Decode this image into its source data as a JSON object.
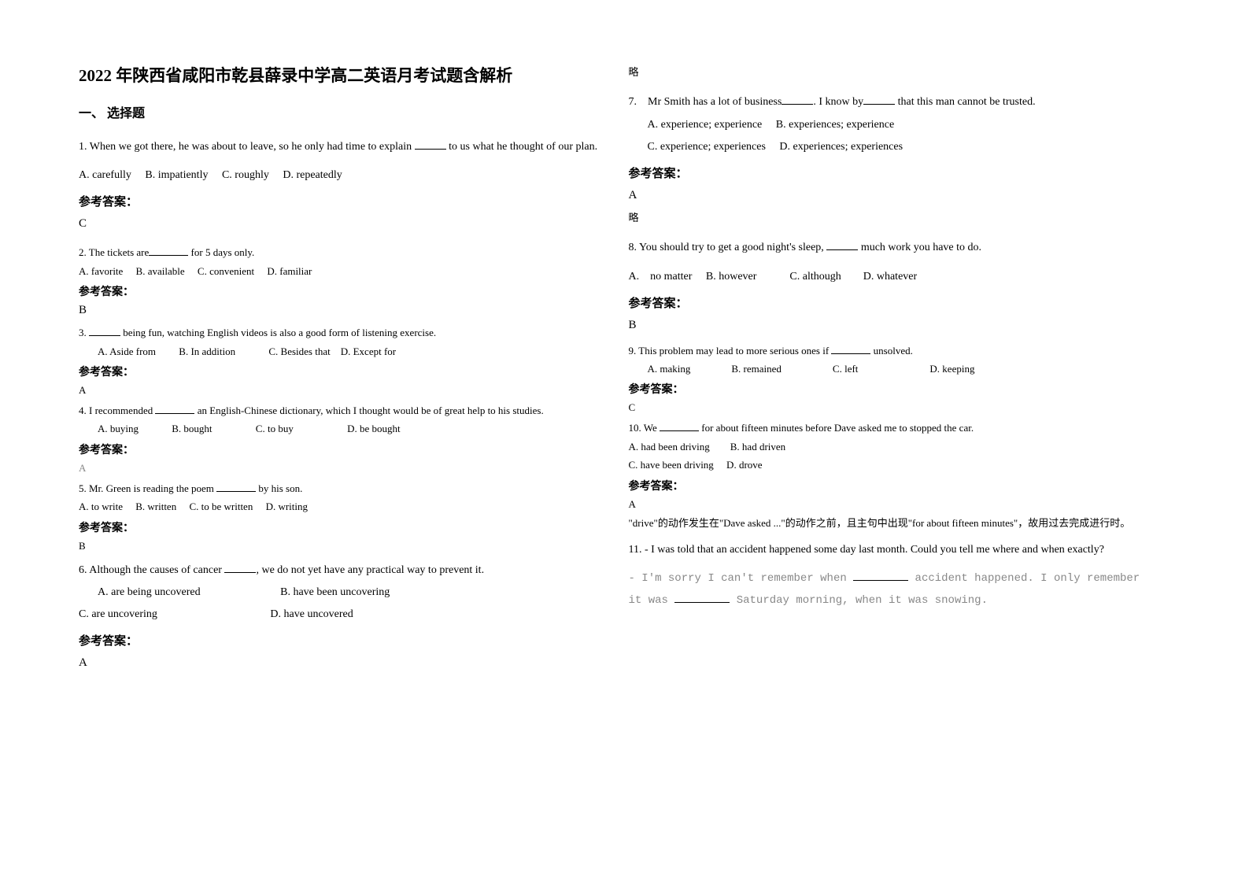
{
  "title": "2022 年陕西省咸阳市乾县薛录中学高二英语月考试题含解析",
  "section1": "一、 选择题",
  "answer_label": "参考答案：",
  "lue": "略",
  "q1": {
    "text_a": "1. When we got there, he was about to leave, so he only had time to explain ",
    "text_b": " to us what he thought of our plan.",
    "opts": "A. carefully  B. impatiently  C. roughly  D. repeatedly",
    "ans": "C"
  },
  "q2": {
    "text_a": "2. The tickets are",
    "text_b": " for 5 days only.",
    "opts": "A. favorite  B. available  C. convenient  D. familiar",
    "ans": "B"
  },
  "q3": {
    "text_a": "3. ",
    "text_b": " being fun, watching English videos is also a good form of listening exercise.",
    "opts": "A. Aside from   B. In addition    C. Besides that D. Except for",
    "ans": "A"
  },
  "q4": {
    "text_a": "4. I recommended ",
    "text_b": " an English-Chinese dictionary, which I thought would be of great help to his studies.",
    "opts": "A. buying    B. bought     C. to buy      D. be bought",
    "ans": "A"
  },
  "q5": {
    "text_a": "5. Mr. Green is reading the poem ",
    "text_b": " by his son.",
    "opts": "A. to write  B. written  C. to be written  D. writing",
    "ans": "B"
  },
  "q6": {
    "text_a": "6. Although the causes of cancer ",
    "text_b": ", we do not yet have any practical way to prevent it.",
    "opts1": "A. are being uncovered        B. have been uncovering",
    "opts2": "C. are uncovering           D. have uncovered",
    "ans": "A"
  },
  "q7": {
    "text_a": "7. Mr Smith has a lot of business",
    "text_b": ". I know by",
    "text_c": " that this man cannot be trusted.",
    "opts1": "A. experience; experience  B. experiences; experience",
    "opts2": "C. experience; experiences  D. experiences; experiences",
    "ans": "A"
  },
  "q8": {
    "text_a": "8. You should try to get a good night's sleep, ",
    "text_b": " much work you have to do.",
    "opts": "A. no matter  B. however   C. although  D. whatever",
    "ans": "B"
  },
  "q9": {
    "text_a": "9. This problem may lead to more serious ones if ",
    "text_b": " unsolved.",
    "opts": "A. making    B. remained     C. left       D. keeping",
    "ans": "C"
  },
  "q10": {
    "text_a": "10. We ",
    "text_b": " for about fifteen minutes before Dave asked me to stopped the car.",
    "opts1": "A. had been driving  B. had driven",
    "opts2": "C. have been driving  D. drove",
    "ans": "A",
    "expl": "\"drive\"的动作发生在\"Dave asked ...\"的动作之前，且主句中出现\"for about fifteen minutes\"，故用过去完成进行时。"
  },
  "q11": {
    "text_a": "11. - I was told that an accident happened some day last month. Could you tell me where and when exactly?",
    "text_b1": "- I'm sorry I can't remember when ",
    "text_b2": " accident happened. I only remember it was ",
    "text_b3": " Saturday morning, when it was snowing."
  }
}
